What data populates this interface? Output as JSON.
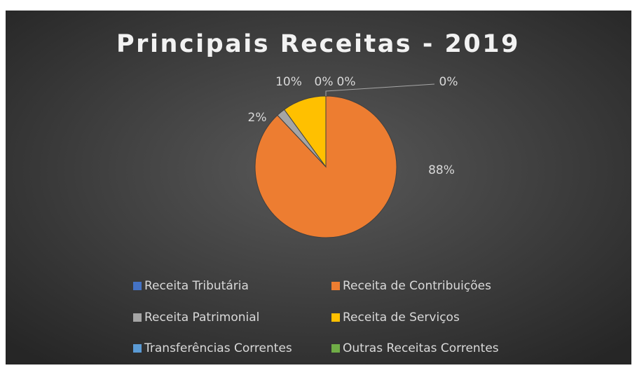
{
  "chart_data": {
    "type": "pie",
    "title": "Principais Receitas - 2019",
    "categories": [
      "Receita Tributária",
      "Receita de Contribuições",
      "Receita Patrimonial",
      "Receita de Serviços",
      "Transferências Correntes",
      "Outras Receitas Correntes"
    ],
    "values": [
      0,
      88,
      2,
      10,
      0,
      0
    ],
    "value_labels": [
      "0%",
      "88%",
      "2%",
      "10%",
      "0%",
      "0%"
    ],
    "colors": [
      "#4472c4",
      "#ed7d31",
      "#a5a5a5",
      "#ffc000",
      "#5b9bd5",
      "#70ad47"
    ],
    "legend": "bottom"
  }
}
